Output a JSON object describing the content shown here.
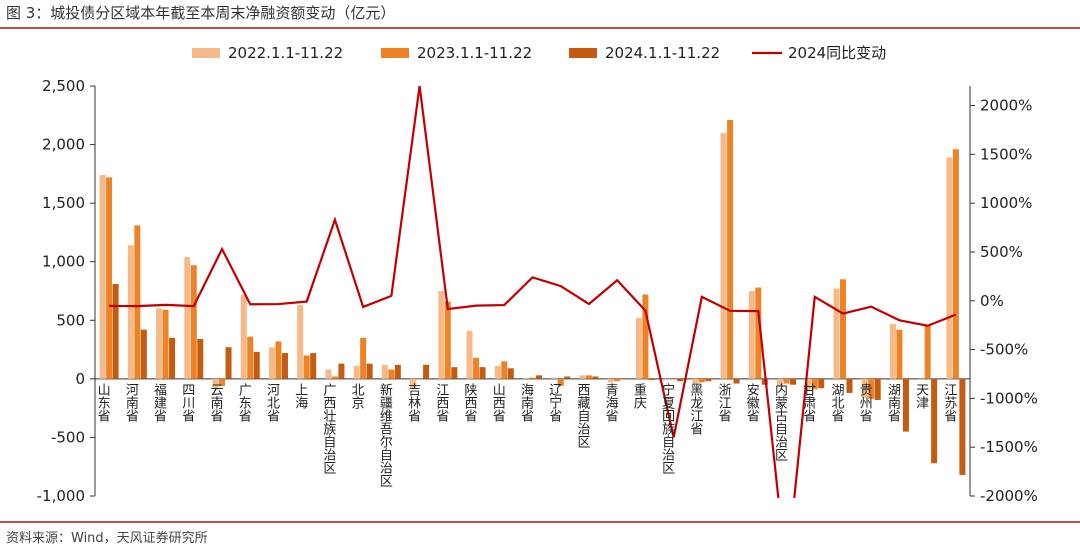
{
  "figure": {
    "title": "图 3：城投债分区域本年截至本周末净融资额变动（亿元）",
    "source": "资料来源：Wind，天风证券研究所"
  },
  "chart_data": {
    "type": "bar",
    "categories": [
      "山东省",
      "河南省",
      "福建省",
      "四川省",
      "云南省",
      "广东省",
      "河北省",
      "上海",
      "广西壮族自治区",
      "北京",
      "新疆维吾尔自治区",
      "吉林省",
      "江西省",
      "陕西省",
      "山西省",
      "海南省",
      "辽宁省",
      "西藏自治区",
      "青海省",
      "重庆",
      "宁夏回族自治区",
      "黑龙江省",
      "浙江省",
      "安徽省",
      "内蒙古自治区",
      "甘肃省",
      "湖北省",
      "贵州省",
      "湖南省",
      "天津",
      "江苏省"
    ],
    "series": [
      {
        "name": "2022.1.1-11.22",
        "type": "bar",
        "axis": "left",
        "color": "#f7b987",
        "values": [
          1740,
          1140,
          600,
          1040,
          -80,
          720,
          270,
          630,
          80,
          110,
          120,
          -80,
          750,
          410,
          110,
          5,
          10,
          30,
          -30,
          520,
          -10,
          -50,
          2100,
          750,
          -60,
          -90,
          770,
          -160,
          470,
          -10,
          1890
        ]
      },
      {
        "name": "2023.1.1-11.22",
        "type": "bar",
        "axis": "left",
        "color": "#ee8326",
        "values": [
          1720,
          1310,
          590,
          970,
          -60,
          360,
          320,
          200,
          20,
          350,
          80,
          0,
          660,
          180,
          150,
          10,
          -60,
          30,
          -20,
          720,
          0,
          -30,
          2210,
          780,
          -40,
          -90,
          850,
          -170,
          420,
          460,
          1960
        ]
      },
      {
        "name": "2024.1.1-11.22",
        "type": "bar",
        "axis": "left",
        "color": "#c55a11",
        "values": [
          810,
          420,
          350,
          340,
          270,
          230,
          220,
          220,
          130,
          130,
          120,
          120,
          100,
          100,
          90,
          30,
          20,
          20,
          0,
          -10,
          -20,
          -20,
          -40,
          -50,
          -50,
          -80,
          -120,
          -180,
          -450,
          -720,
          -820
        ]
      },
      {
        "name": "2024同比变动",
        "type": "line",
        "axis": "right",
        "color": "#c00000",
        "values": [
          -53,
          -55,
          -42,
          -55,
          530,
          -36,
          -34,
          -8,
          830,
          -63,
          50,
          2200,
          -85,
          -50,
          -44,
          240,
          150,
          -33,
          210,
          -101,
          -1400,
          40,
          -103,
          -106,
          -2800,
          40,
          -131,
          -60,
          -200,
          -256,
          -142
        ]
      }
    ],
    "ylim": [
      -1000,
      2500
    ],
    "yticks": [
      "2,500",
      "2,000",
      "1,500",
      "1,000",
      "500",
      "0",
      "-500",
      "-1,000"
    ],
    "y2lim": [
      -2000,
      2200
    ],
    "y2ticks": [
      "2000%",
      "1500%",
      "1000%",
      "500%",
      "0%",
      "-500%",
      "-1000%",
      "-1500%",
      "-2000%"
    ],
    "legend_position": "top",
    "grid": false
  }
}
